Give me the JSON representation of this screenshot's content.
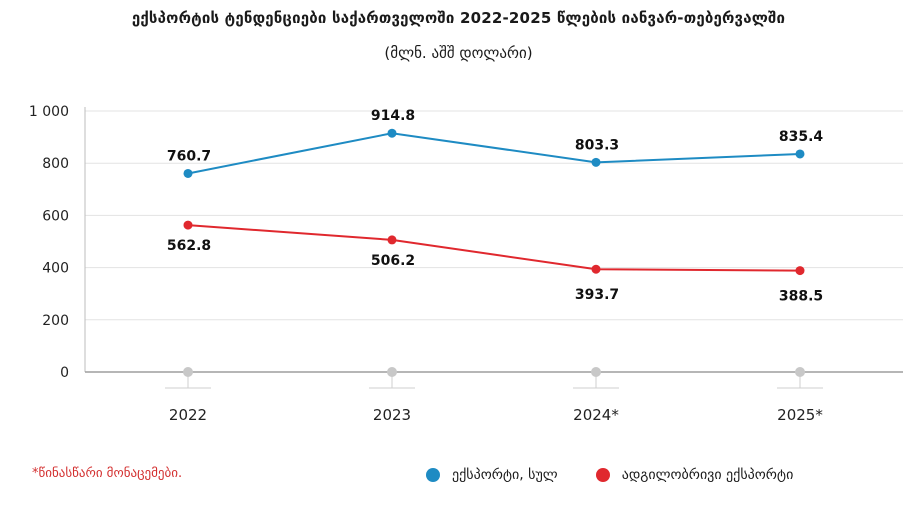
{
  "title": "ექსპორტის ტენდენციები საქართველოში 2022-2025 წლების იანვარ-თებერვალში",
  "subtitle": "(მლნ. აშშ დოლარი)",
  "footnote": "*წინასწარი მონაცემები.",
  "chart_data": {
    "type": "line",
    "categories": [
      "2022",
      "2023",
      "2024*",
      "2025*"
    ],
    "ylim": [
      0,
      1000
    ],
    "yticks": [
      0,
      200,
      400,
      600,
      800,
      1000
    ],
    "ytick_labels": [
      "0",
      "200",
      "400",
      "600",
      "800",
      "1 000"
    ],
    "grid": true,
    "legend_position": "bottom-right",
    "series": [
      {
        "name": "ექსპორტი, სულ",
        "color": "#1e8bc3",
        "values": [
          760.7,
          914.8,
          803.3,
          835.4
        ],
        "labels": [
          "760.7",
          "914.8",
          "803.3",
          "835.4"
        ]
      },
      {
        "name": "ადგილობრივი ექსპორტი",
        "color": "#e0282e",
        "values": [
          562.8,
          506.2,
          393.7,
          388.5
        ],
        "labels": [
          "562.8",
          "506.2",
          "393.7",
          "388.5"
        ]
      }
    ],
    "baseline_marker_color": "#c8c8c8"
  }
}
